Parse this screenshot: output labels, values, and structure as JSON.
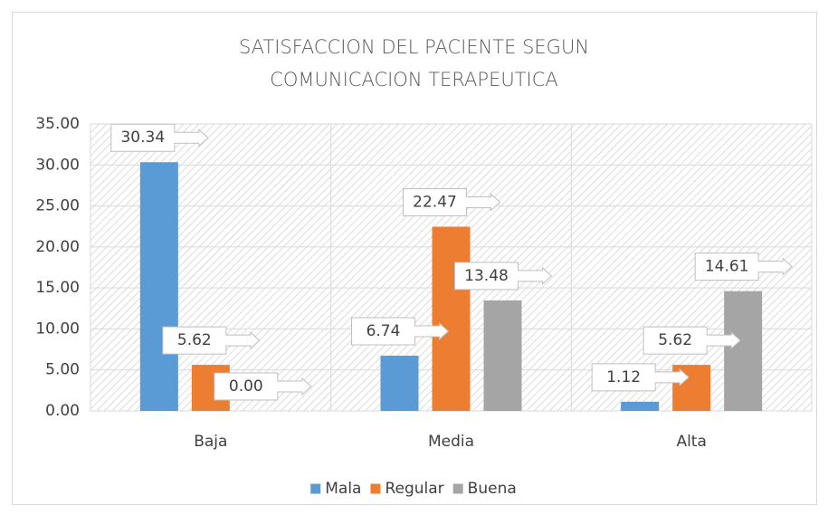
{
  "chart_data": {
    "type": "bar",
    "title": "SATISFACCION DEL PACIENTE SEGUN COMUNICACION TERAPEUTICA",
    "categories": [
      "Baja",
      "Media",
      "Alta"
    ],
    "series": [
      {
        "name": "Mala",
        "color": "#5b9bd5",
        "values": [
          30.34,
          6.74,
          1.12
        ],
        "value_labels": [
          "30.34",
          "6.74",
          "1.12"
        ]
      },
      {
        "name": "Regular",
        "color": "#ed7d31",
        "values": [
          5.62,
          22.47,
          5.62
        ],
        "value_labels": [
          "5.62",
          "22.47",
          "5.62"
        ]
      },
      {
        "name": "Buena",
        "color": "#a5a5a5",
        "values": [
          0,
          13.48,
          14.61
        ],
        "value_labels": [
          "0.00",
          "13.48",
          "14.61"
        ]
      }
    ],
    "ylim": [
      0,
      35
    ],
    "yticks": [
      {
        "value": 0,
        "label": "0.00"
      },
      {
        "value": 5,
        "label": "5.00"
      },
      {
        "value": 10,
        "label": "10.00"
      },
      {
        "value": 15,
        "label": "15.00"
      },
      {
        "value": 20,
        "label": "20.00"
      },
      {
        "value": 25,
        "label": "25.00"
      },
      {
        "value": 30,
        "label": "30.00"
      },
      {
        "value": 35,
        "label": "35.00"
      }
    ],
    "grid": true,
    "legend": "bottom"
  }
}
